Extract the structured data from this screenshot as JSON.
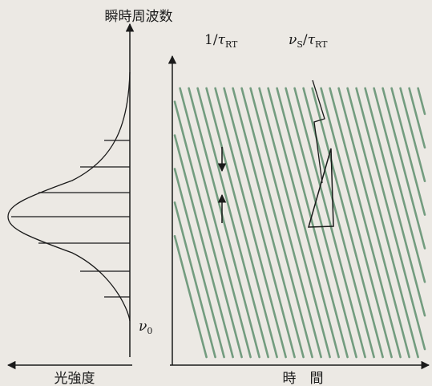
{
  "labels": {
    "y_axis": "瞬時周波数",
    "x_axis_right": "時　間",
    "x_axis_left": "光強度",
    "carrier": "ν",
    "carrier_sub": "0",
    "spacing_num": "1/",
    "spacing_tau": "τ",
    "spacing_sub": "RT",
    "slope_nu": "ν",
    "slope_nu_sub": "S",
    "slope_slash": "/",
    "slope_tau": "τ",
    "slope_tau_sub": "RT"
  },
  "colors": {
    "ink": "#1a1a1a",
    "sweep": "#5f8f6e",
    "paper": "#ece9e4"
  },
  "diagram": {
    "spectrum_comb_line_count": 7,
    "sweep_line_count": 44
  }
}
